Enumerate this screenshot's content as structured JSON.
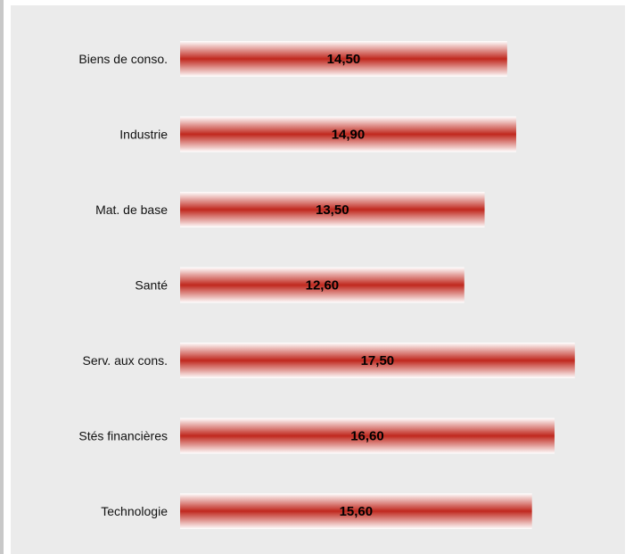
{
  "chart_data": {
    "type": "bar",
    "orientation": "horizontal",
    "categories": [
      "Biens de conso.",
      "Industrie",
      "Mat. de base",
      "Santé",
      "Serv. aux cons.",
      "Stés financières",
      "Technologie"
    ],
    "values": [
      14.5,
      14.9,
      13.5,
      12.6,
      17.5,
      16.6,
      15.6
    ],
    "value_labels": [
      "14,50",
      "14,90",
      "13,50",
      "12,60",
      "17,50",
      "16,60",
      "15,60"
    ],
    "title": "",
    "xlabel": "",
    "ylabel": "",
    "xlim": [
      0,
      18
    ],
    "grid": false,
    "legend": "none",
    "colors": {
      "bar_core": "#c0281e",
      "bar_edge": "#ffffff",
      "background": "#ebebeb"
    }
  }
}
